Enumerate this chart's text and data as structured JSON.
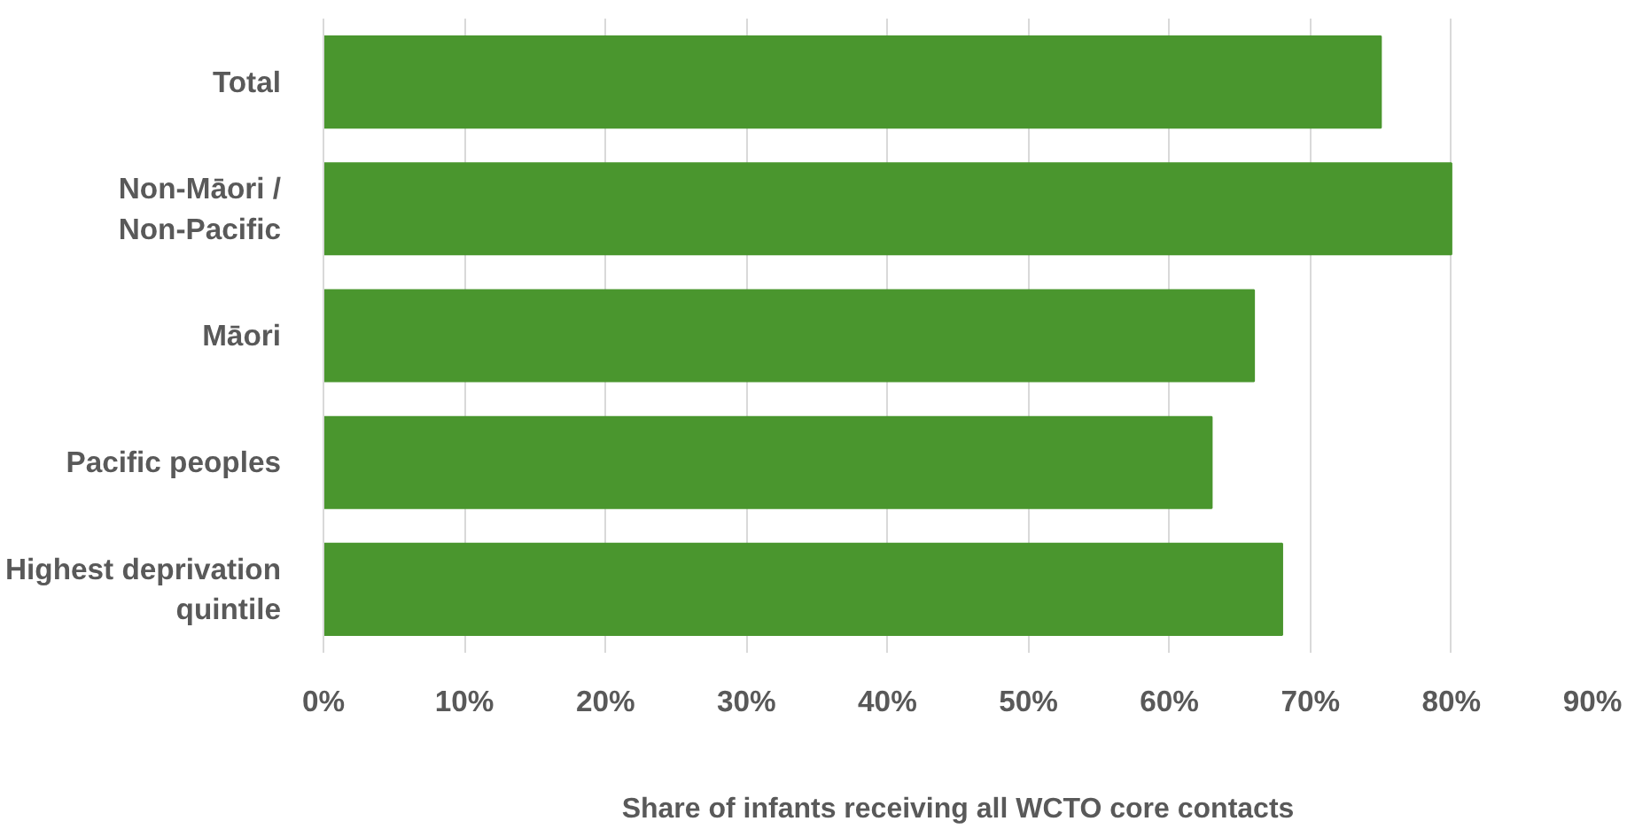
{
  "chart_data": {
    "type": "bar",
    "orientation": "horizontal",
    "xlabel": "Share of infants receiving all WCTO core contacts",
    "categories": [
      "Total",
      "Non-Māori /\nNon-Pacific",
      "Māori",
      "Pacific peoples",
      "Highest deprivation\nquintile"
    ],
    "values": [
      75,
      80,
      66,
      63,
      68
    ],
    "color": "#4a962e",
    "xlim": [
      0,
      90
    ],
    "xticks": [
      {
        "value": 0,
        "label": "0%"
      },
      {
        "value": 10,
        "label": "10%"
      },
      {
        "value": 20,
        "label": "20%"
      },
      {
        "value": 30,
        "label": "30%"
      },
      {
        "value": 40,
        "label": "40%"
      },
      {
        "value": 50,
        "label": "50%"
      },
      {
        "value": 60,
        "label": "60%"
      },
      {
        "value": 70,
        "label": "70%"
      },
      {
        "value": 80,
        "label": "80%"
      },
      {
        "value": 90,
        "label": "90%"
      }
    ],
    "grid": "x"
  }
}
